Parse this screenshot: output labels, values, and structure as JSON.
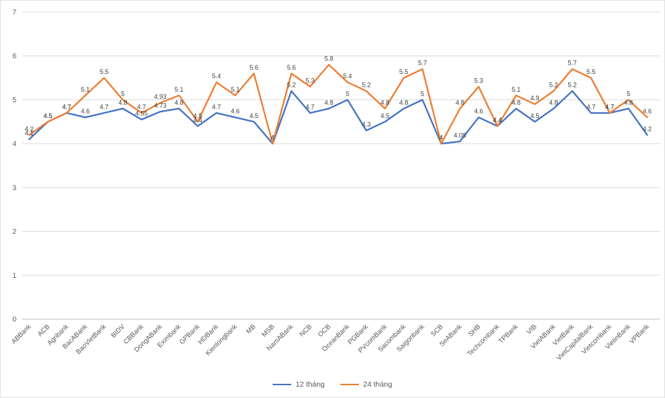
{
  "chart_data": {
    "type": "line",
    "title": "",
    "categories": [
      "ABBank",
      "ACB",
      "Agribank",
      "BacABank",
      "BaoVietBank",
      "BIDV",
      "CBBank",
      "DongABank",
      "Eximbank",
      "GPBank",
      "HDBank",
      "Kienlongbank",
      "MB",
      "MSB",
      "NamABank",
      "NCB",
      "OCB",
      "OceanBank",
      "PGBank",
      "PVcomBank",
      "Sacombank",
      "Saigonbank",
      "SCB",
      "SeABank",
      "SHB",
      "Techcombank",
      "TPBank",
      "VIB",
      "VietABank",
      "VietBank",
      "VietCapitalBank",
      "Vietcombank",
      "VietinBank",
      "VPBank"
    ],
    "series": [
      {
        "name": "12 tháng",
        "color": "#4472C4",
        "values": [
          4.1,
          4.5,
          4.7,
          4.6,
          4.7,
          4.8,
          4.55,
          4.73,
          4.8,
          4.4,
          4.7,
          4.6,
          4.5,
          4,
          5.2,
          4.7,
          4.8,
          5,
          4.3,
          4.5,
          4.8,
          5,
          4,
          4.05,
          4.6,
          4.4,
          4.8,
          4.5,
          4.8,
          5.2,
          4.7,
          4.7,
          4.8,
          4.2
        ]
      },
      {
        "name": "24 tháng",
        "color": "#ED7D31",
        "values": [
          4.2,
          4.5,
          4.7,
          5.1,
          5.5,
          5,
          4.7,
          4.93,
          5.1,
          4.5,
          5.4,
          5.1,
          5.6,
          4,
          5.6,
          5.3,
          5.8,
          5.4,
          5.2,
          4.8,
          5.5,
          5.7,
          4,
          4.8,
          5.3,
          4.4,
          5.1,
          4.9,
          5.2,
          5.7,
          5.5,
          4.7,
          5,
          4.6
        ]
      }
    ],
    "ylim": [
      0,
      7
    ],
    "yticks": [
      0,
      1,
      2,
      3,
      4,
      5,
      6,
      7
    ],
    "grid": true,
    "legend_position": "bottom",
    "label_color": "#404040",
    "axis_label_color": "#595959",
    "gridline_color": "#D9D9D9",
    "axis_line_color": "#BFBFBF"
  }
}
